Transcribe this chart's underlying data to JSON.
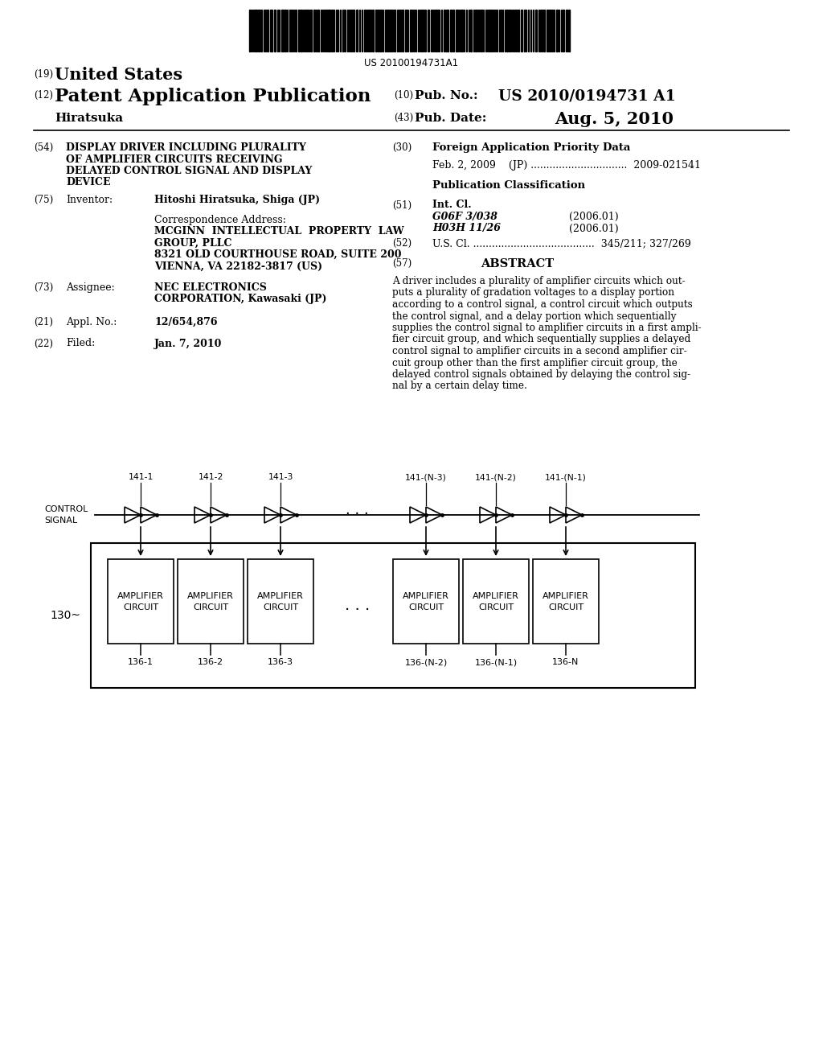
{
  "bg_color": "#ffffff",
  "barcode_num": "US 20100194731A1",
  "header_country": "(19)",
  "header_country_name": "United States",
  "header_type_num": "(12)",
  "header_type": "Patent Application Publication",
  "header_inventor": "Hiratsuka",
  "header_pubno_num": "(10)",
  "header_pubno_label": "Pub. No.:",
  "header_pubno": "US 2010/0194731 A1",
  "header_date_num": "(43)",
  "header_date_label": "Pub. Date:",
  "header_date": "Aug. 5, 2010",
  "f54_num": "(54)",
  "f54_lines": [
    "DISPLAY DRIVER INCLUDING PLURALITY",
    "OF AMPLIFIER CIRCUITS RECEIVING",
    "DELAYED CONTROL SIGNAL AND DISPLAY",
    "DEVICE"
  ],
  "f75_num": "(75)",
  "f75_label": "Inventor:",
  "f75_val": "Hitoshi Hiratsuka, Shiga (JP)",
  "corr_label": "Correspondence Address:",
  "corr_lines": [
    "MCGINN  INTELLECTUAL  PROPERTY  LAW",
    "GROUP, PLLC",
    "8321 OLD COURTHOUSE ROAD, SUITE 200",
    "VIENNA, VA 22182-3817 (US)"
  ],
  "f73_num": "(73)",
  "f73_label": "Assignee:",
  "f73_val_lines": [
    "NEC ELECTRONICS",
    "CORPORATION, Kawasaki (JP)"
  ],
  "f21_num": "(21)",
  "f21_label": "Appl. No.:",
  "f21_val": "12/654,876",
  "f22_num": "(22)",
  "f22_label": "Filed:",
  "f22_val": "Jan. 7, 2010",
  "f30_num": "(30)",
  "f30_label": "Foreign Application Priority Data",
  "f30_line": "Feb. 2, 2009    (JP) ...............................  2009-021541",
  "pub_class_label": "Publication Classification",
  "f51_num": "(51)",
  "f51_label": "Int. Cl.",
  "f51_c1": "G06F 3/038",
  "f51_y1": "(2006.01)",
  "f51_c2": "H03H 11/26",
  "f51_y2": "(2006.01)",
  "f52_num": "(52)",
  "f52_line": "U.S. Cl. .......................................  345/211; 327/269",
  "f57_num": "(57)",
  "f57_label": "ABSTRACT",
  "abstract_lines": [
    "A driver includes a plurality of amplifier circuits which out-",
    "puts a plurality of gradation voltages to a display portion",
    "according to a control signal, a control circuit which outputs",
    "the control signal, and a delay portion which sequentially",
    "supplies the control signal to amplifier circuits in a first ampli-",
    "fier circuit group, and which sequentially supplies a delayed",
    "control signal to amplifier circuits in a second amplifier cir-",
    "cuit group other than the first amplifier circuit group, the",
    "delayed control signals obtained by delaying the control sig-",
    "nal by a certain delay time."
  ],
  "diag_ctrl_label": "CONTROL\nSIGNAL",
  "diag_130": "130",
  "delay_labels": [
    "141-1",
    "141-2",
    "141-3",
    "141-(N-3)",
    "141-(N-2)",
    "141-(N-1)"
  ],
  "amp_bottom_labels": [
    "136-1",
    "136-2",
    "136-3",
    "136-(N-2)",
    "136-(N-1)",
    "136-N"
  ],
  "amp_text": "AMPLIFIER\nCIRCUIT"
}
